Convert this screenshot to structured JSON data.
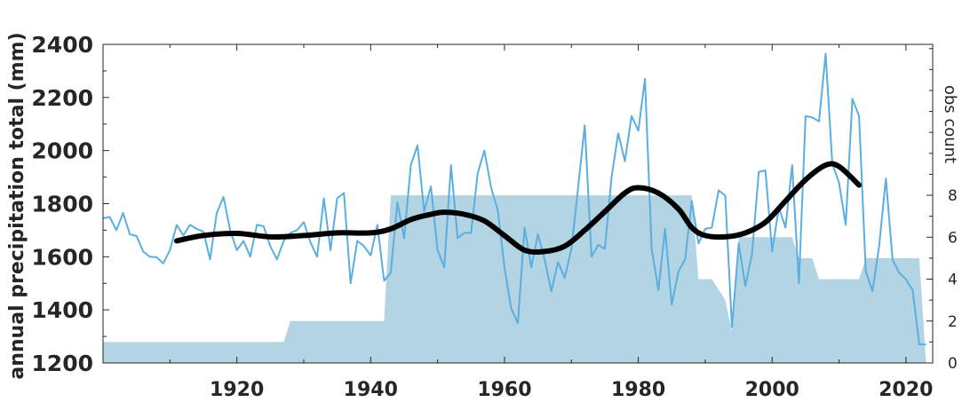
{
  "chart_data": {
    "type": "line",
    "ylabel": "annual precipitation total (mm)",
    "y2label": "obs count",
    "xlim": [
      1900,
      2024
    ],
    "ylim": [
      1200,
      2400
    ],
    "y2lim": [
      0,
      15.2
    ],
    "xticks": [
      1920,
      1940,
      1960,
      1980,
      2000,
      2020
    ],
    "yticks": [
      1200,
      1400,
      1600,
      1800,
      2000,
      2200,
      2400
    ],
    "y2ticks": [
      0,
      2,
      4,
      6,
      8
    ],
    "colors": {
      "annual": "#5aaee0",
      "smooth": "#000000",
      "count": "#b3d4e3"
    },
    "series": [
      {
        "kind": "area",
        "axis": "right",
        "x": [
          1900,
          1927,
          1928,
          1942,
          1943,
          1988,
          1989,
          1991,
          1993,
          1994,
          1995,
          2003,
          2004,
          2006,
          2007,
          2013,
          2014,
          2022,
          2023
        ],
        "values": [
          1,
          1,
          2,
          2,
          8,
          8,
          4,
          4,
          3,
          1.5,
          6,
          6,
          5,
          5,
          4,
          4,
          5,
          5,
          0
        ]
      },
      {
        "kind": "line",
        "axis": "left",
        "x": [
          1900,
          1901,
          1902,
          1903,
          1904,
          1905,
          1906,
          1907,
          1908,
          1909,
          1910,
          1911,
          1912,
          1913,
          1914,
          1915,
          1916,
          1917,
          1918,
          1919,
          1920,
          1921,
          1922,
          1923,
          1924,
          1925,
          1926,
          1927,
          1928,
          1929,
          1930,
          1931,
          1932,
          1933,
          1934,
          1935,
          1936,
          1937,
          1938,
          1939,
          1940,
          1941,
          1942,
          1943,
          1944,
          1945,
          1946,
          1947,
          1948,
          1949,
          1950,
          1951,
          1952,
          1953,
          1954,
          1955,
          1956,
          1957,
          1958,
          1959,
          1960,
          1961,
          1962,
          1963,
          1964,
          1965,
          1966,
          1967,
          1968,
          1969,
          1970,
          1971,
          1972,
          1973,
          1974,
          1975,
          1976,
          1977,
          1978,
          1979,
          1980,
          1981,
          1982,
          1983,
          1984,
          1985,
          1986,
          1987,
          1988,
          1989,
          1990,
          1991,
          1992,
          1993,
          1994,
          1995,
          1996,
          1997,
          1998,
          1999,
          2000,
          2001,
          2002,
          2003,
          2004,
          2005,
          2006,
          2007,
          2008,
          2009,
          2010,
          2011,
          2012,
          2013,
          2014,
          2015,
          2016,
          2017,
          2018,
          2019,
          2020,
          2021,
          2022,
          2023
        ],
        "values": [
          1745,
          1750,
          1700,
          1765,
          1685,
          1678,
          1620,
          1600,
          1598,
          1575,
          1625,
          1720,
          1680,
          1720,
          1705,
          1695,
          1590,
          1765,
          1825,
          1700,
          1625,
          1660,
          1600,
          1720,
          1715,
          1640,
          1590,
          1660,
          1690,
          1700,
          1730,
          1655,
          1600,
          1820,
          1625,
          1820,
          1840,
          1500,
          1660,
          1640,
          1605,
          1720,
          1510,
          1540,
          1805,
          1670,
          1945,
          2020,
          1770,
          1865,
          1625,
          1560,
          1945,
          1670,
          1690,
          1690,
          1915,
          2000,
          1860,
          1775,
          1560,
          1405,
          1350,
          1710,
          1560,
          1685,
          1590,
          1470,
          1580,
          1520,
          1630,
          1860,
          2095,
          1600,
          1645,
          1630,
          1900,
          2065,
          1960,
          2130,
          2075,
          2270,
          1630,
          1475,
          1705,
          1420,
          1545,
          1590,
          1810,
          1650,
          1705,
          1710,
          1850,
          1830,
          1335,
          1650,
          1490,
          1610,
          1920,
          1925,
          1620,
          1785,
          1710,
          1945,
          1500,
          2130,
          2125,
          2110,
          2365,
          1950,
          1880,
          1720,
          2195,
          2130,
          1545,
          1470,
          1640,
          1895,
          1590,
          1540,
          1515,
          1475,
          1270,
          1270
        ]
      },
      {
        "kind": "smooth",
        "axis": "left",
        "x": [
          1911,
          1915,
          1920,
          1925,
          1930,
          1935,
          1940,
          1943,
          1946,
          1949,
          1951,
          1954,
          1957,
          1960,
          1963,
          1966,
          1969,
          1972,
          1975,
          1978,
          1980,
          1983,
          1986,
          1988,
          1990,
          1993,
          1996,
          1999,
          2002,
          2005,
          2008,
          2010,
          2013
        ],
        "values": [
          1660,
          1680,
          1688,
          1675,
          1680,
          1690,
          1690,
          1705,
          1740,
          1760,
          1768,
          1760,
          1735,
          1680,
          1625,
          1620,
          1640,
          1700,
          1770,
          1840,
          1860,
          1840,
          1780,
          1710,
          1680,
          1675,
          1690,
          1730,
          1810,
          1890,
          1945,
          1940,
          1870
        ]
      }
    ]
  }
}
